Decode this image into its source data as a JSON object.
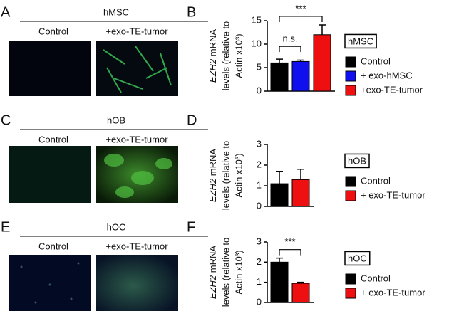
{
  "image_panels": [
    {
      "letter": "A",
      "title": "hMSC",
      "labels": [
        "Control",
        "+exo-TE-tumor"
      ]
    },
    {
      "letter": "C",
      "title": "hOB",
      "labels": [
        "Control",
        "+exo-TE-tumor"
      ]
    },
    {
      "letter": "E",
      "title": "hOC",
      "labels": [
        "Control",
        "+exo-TE-tumor"
      ]
    }
  ],
  "chart_data": [
    {
      "type": "bar",
      "letter": "B",
      "ylabel": [
        "EZH2",
        "mRNA",
        "levels (relative to",
        "Actin x10³)"
      ],
      "categories": [
        "Control",
        "+ exo-hMSC",
        "+exo-TE-tumor"
      ],
      "colors": [
        "#000000",
        "#1010ee",
        "#ee1010"
      ],
      "values": [
        6,
        6.3,
        12
      ],
      "errors": [
        0.8,
        0.3,
        2.1
      ],
      "ylim": [
        0,
        15
      ],
      "yticks": [
        0,
        5,
        10,
        15
      ],
      "legend_title": "hMSC",
      "annotations": [
        "***",
        "n.s."
      ]
    },
    {
      "type": "bar",
      "letter": "D",
      "ylabel": [
        "EZH2",
        "mRNA",
        "levels (relative to",
        "Actin x10³)"
      ],
      "categories": [
        "Control",
        "+ exo-TE-tumor"
      ],
      "colors": [
        "#000000",
        "#ee1010"
      ],
      "values": [
        1.1,
        1.3
      ],
      "errors": [
        0.6,
        0.5
      ],
      "ylim": [
        0,
        3
      ],
      "yticks": [
        0,
        1,
        2,
        3
      ],
      "legend_title": "hOB",
      "annotations": []
    },
    {
      "type": "bar",
      "letter": "F",
      "ylabel": [
        "EZH2",
        "mRNA",
        "levels (relative to",
        "Actin x10³)"
      ],
      "categories": [
        "Control",
        "+ exo-TE-tumor"
      ],
      "colors": [
        "#000000",
        "#ee1010"
      ],
      "values": [
        2.0,
        0.95
      ],
      "errors": [
        0.2,
        0.05
      ],
      "ylim": [
        0,
        3
      ],
      "yticks": [
        0,
        1,
        2,
        3
      ],
      "legend_title": "hOC",
      "annotations": [
        "***"
      ]
    }
  ]
}
